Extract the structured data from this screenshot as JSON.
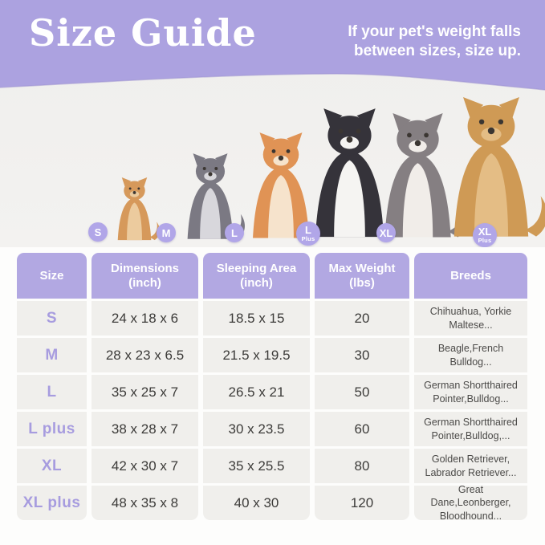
{
  "header": {
    "title": "Size Guide",
    "note_lines": [
      "If your pet's weight falls",
      "between sizes, size up."
    ],
    "band_color": "#aca2e0"
  },
  "dogs": [
    {
      "breed": "pomeranian",
      "badge_top": "S",
      "badge_sub": "",
      "body_color": "#d6995b",
      "chest_color": "#eccb9e"
    },
    {
      "breed": "french-bulldog",
      "badge_top": "M",
      "badge_sub": "",
      "body_color": "#7b7983",
      "chest_color": "#d8d7dc"
    },
    {
      "breed": "shiba-inu",
      "badge_top": "L",
      "badge_sub": "",
      "body_color": "#e09355",
      "chest_color": "#f6e3cc"
    },
    {
      "breed": "border-collie",
      "badge_top": "L",
      "badge_sub": "Plus",
      "body_color": "#35333a",
      "chest_color": "#f5f4f2"
    },
    {
      "breed": "australian-shepherd",
      "badge_top": "XL",
      "badge_sub": "",
      "body_color": "#857f82",
      "chest_color": "#f1ede9"
    },
    {
      "breed": "golden-retriever",
      "badge_top": "XL",
      "badge_sub": "Plus",
      "body_color": "#cf9a55",
      "chest_color": "#e4bd85"
    }
  ],
  "badge_color": "#b1a6e8",
  "table": {
    "headers": [
      {
        "line1": "Size",
        "line2": ""
      },
      {
        "line1": "Dimensions",
        "line2": "(inch)"
      },
      {
        "line1": "Sleeping Area",
        "line2": "(inch)"
      },
      {
        "line1": "Max Weight",
        "line2": "(lbs)"
      },
      {
        "line1": "Breeds",
        "line2": ""
      }
    ],
    "rows": [
      {
        "size": "S",
        "dimensions": "24 x 18 x 6",
        "sleeping_area": "18.5 x 15",
        "max_weight": "20",
        "breeds": "Chihuahua, Yorkie Maltese..."
      },
      {
        "size": "M",
        "dimensions": "28 x 23 x 6.5",
        "sleeping_area": "21.5 x 19.5",
        "max_weight": "30",
        "breeds": "Beagle,French Bulldog..."
      },
      {
        "size": "L",
        "dimensions": "35 x 25 x 7",
        "sleeping_area": "26.5 x 21",
        "max_weight": "50",
        "breeds": "German Shortthaired Pointer,Bulldog..."
      },
      {
        "size": "L plus",
        "dimensions": "38 x 28 x 7",
        "sleeping_area": "30 x 23.5",
        "max_weight": "60",
        "breeds": "German Shortthaired Pointer,Bulldog,..."
      },
      {
        "size": "XL",
        "dimensions": "42 x 30 x 7",
        "sleeping_area": "35 x 25.5",
        "max_weight": "80",
        "breeds": "Golden Retriever, Labrador Retriever..."
      },
      {
        "size": "XL plus",
        "dimensions": "48 x 35 x 8",
        "sleeping_area": "40 x 30",
        "max_weight": "120",
        "breeds": "Great Dane,Leonberger, Bloodhound..."
      }
    ]
  },
  "chart_data": {
    "type": "table",
    "title": "Size Guide",
    "note": "If your pet's weight falls between sizes, size up.",
    "columns": [
      "Size",
      "Dimensions (inch)",
      "Sleeping Area (inch)",
      "Max Weight (lbs)",
      "Breeds"
    ],
    "rows": [
      [
        "S",
        "24 x 18 x 6",
        "18.5 x 15",
        20,
        "Chihuahua, Yorkie Maltese..."
      ],
      [
        "M",
        "28 x 23 x 6.5",
        "21.5 x 19.5",
        30,
        "Beagle,French Bulldog..."
      ],
      [
        "L",
        "35 x 25 x 7",
        "26.5 x 21",
        50,
        "German Shortthaired Pointer,Bulldog..."
      ],
      [
        "L plus",
        "38 x 28 x 7",
        "30 x 23.5",
        60,
        "German Shortthaired Pointer,Bulldog,..."
      ],
      [
        "XL",
        "42 x 30 x 7",
        "35 x 25.5",
        80,
        "Golden Retriever, Labrador Retriever..."
      ],
      [
        "XL plus",
        "48 x 35 x 8",
        "40 x 30",
        120,
        "Great Dane,Leonberger, Bloodhound..."
      ]
    ]
  },
  "colors": {
    "header_band": "#aca2e0",
    "table_header_cell": "#b2a8e2",
    "row_background": "#f0efec",
    "size_label": "#a79cdf",
    "data_text": "#3c3b39",
    "badge": "#b1a6e8",
    "dog_zone_background": "#f2f1ef",
    "page_background": "#fdfdfc"
  }
}
